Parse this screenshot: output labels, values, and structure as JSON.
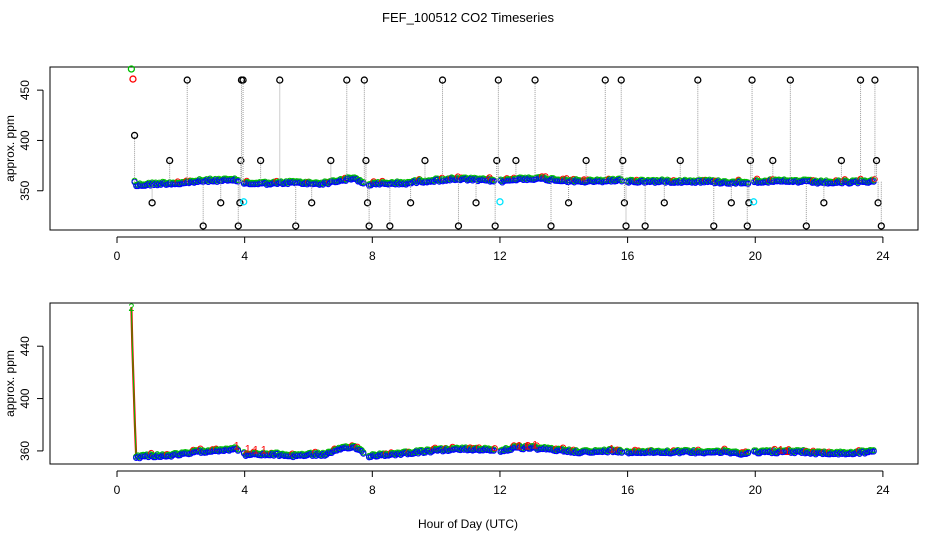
{
  "title": "FEF_100512  CO2 Timeseries",
  "xlabel": "Hour of Day (UTC)",
  "colors": {
    "black": "#000000",
    "red": "#ff0000",
    "green": "#00c000",
    "blue": "#0000ff",
    "cyan": "#00e5ff",
    "gray": "#9a9a9a"
  },
  "chart_data": [
    {
      "type": "scatter",
      "panel": "top",
      "ylabel": "approx. ppm",
      "xlim": [
        -2.1,
        25.1
      ],
      "ylim": [
        311,
        473
      ],
      "xticks": [
        0,
        4,
        8,
        12,
        16,
        20,
        24
      ],
      "yticks": [
        350,
        400,
        450
      ],
      "segments": [
        [
          0.55,
          3.82
        ],
        [
          3.98,
          7.72
        ],
        [
          7.9,
          11.85
        ],
        [
          12.02,
          15.83
        ],
        [
          15.98,
          19.8
        ],
        [
          19.97,
          23.75
        ]
      ],
      "baseline": [
        [
          0.6,
          355
        ],
        [
          1.0,
          356
        ],
        [
          1.5,
          357
        ],
        [
          2.0,
          357
        ],
        [
          2.5,
          359
        ],
        [
          3.0,
          360
        ],
        [
          3.5,
          360
        ],
        [
          3.8,
          360
        ],
        [
          4.0,
          357
        ],
        [
          4.5,
          357
        ],
        [
          5.0,
          357
        ],
        [
          5.5,
          358
        ],
        [
          6.0,
          357
        ],
        [
          6.5,
          357
        ],
        [
          7.0,
          360
        ],
        [
          7.4,
          362
        ],
        [
          7.7,
          358
        ],
        [
          7.9,
          356
        ],
        [
          8.5,
          357
        ],
        [
          9.0,
          357
        ],
        [
          9.5,
          359
        ],
        [
          10.0,
          360
        ],
        [
          10.5,
          361
        ],
        [
          11.0,
          361
        ],
        [
          11.5,
          360
        ],
        [
          11.85,
          360
        ],
        [
          12.02,
          359
        ],
        [
          12.5,
          361
        ],
        [
          13.0,
          362
        ],
        [
          13.5,
          361
        ],
        [
          14.0,
          360
        ],
        [
          14.5,
          359
        ],
        [
          15.0,
          359
        ],
        [
          15.5,
          360
        ],
        [
          15.83,
          360
        ],
        [
          15.98,
          359
        ],
        [
          16.5,
          359
        ],
        [
          17.0,
          359
        ],
        [
          17.5,
          359
        ],
        [
          18.0,
          359
        ],
        [
          18.5,
          359
        ],
        [
          19.0,
          358
        ],
        [
          19.5,
          358
        ],
        [
          19.8,
          358
        ],
        [
          19.97,
          359
        ],
        [
          20.5,
          359
        ],
        [
          21.0,
          359
        ],
        [
          21.5,
          359
        ],
        [
          22.0,
          358
        ],
        [
          22.5,
          358
        ],
        [
          23.0,
          358
        ],
        [
          23.5,
          359
        ],
        [
          23.75,
          359
        ]
      ],
      "black_points": [
        [
          0.55,
          405
        ],
        [
          1.1,
          338
        ],
        [
          1.65,
          380
        ],
        [
          2.2,
          460
        ],
        [
          2.7,
          315
        ],
        [
          3.25,
          338
        ],
        [
          3.8,
          315
        ],
        [
          3.85,
          338
        ],
        [
          3.88,
          380
        ],
        [
          3.9,
          460
        ],
        [
          3.95,
          460
        ],
        [
          4.5,
          380
        ],
        [
          5.1,
          460
        ],
        [
          5.6,
          315
        ],
        [
          6.1,
          338
        ],
        [
          6.7,
          380
        ],
        [
          7.2,
          460
        ],
        [
          7.75,
          460
        ],
        [
          7.8,
          380
        ],
        [
          7.85,
          338
        ],
        [
          7.9,
          315
        ],
        [
          8.55,
          315
        ],
        [
          9.2,
          338
        ],
        [
          9.65,
          380
        ],
        [
          10.2,
          460
        ],
        [
          10.7,
          315
        ],
        [
          11.25,
          338
        ],
        [
          11.85,
          315
        ],
        [
          11.9,
          380
        ],
        [
          11.95,
          460
        ],
        [
          12.5,
          380
        ],
        [
          13.1,
          460
        ],
        [
          13.6,
          315
        ],
        [
          14.15,
          338
        ],
        [
          14.7,
          380
        ],
        [
          15.3,
          460
        ],
        [
          15.8,
          460
        ],
        [
          15.85,
          380
        ],
        [
          15.9,
          338
        ],
        [
          15.95,
          315
        ],
        [
          16.55,
          315
        ],
        [
          17.15,
          338
        ],
        [
          17.65,
          380
        ],
        [
          18.2,
          460
        ],
        [
          18.7,
          315
        ],
        [
          19.25,
          338
        ],
        [
          19.75,
          315
        ],
        [
          19.8,
          338
        ],
        [
          19.85,
          380
        ],
        [
          19.9,
          460
        ],
        [
          20.55,
          380
        ],
        [
          21.1,
          460
        ],
        [
          21.6,
          315
        ],
        [
          22.15,
          338
        ],
        [
          22.7,
          380
        ],
        [
          23.3,
          460
        ],
        [
          23.75,
          460
        ],
        [
          23.8,
          380
        ],
        [
          23.85,
          338
        ],
        [
          23.95,
          315
        ]
      ],
      "extra_points": [
        {
          "color": "green",
          "x": 0.45,
          "y": 471
        },
        {
          "color": "red",
          "x": 0.5,
          "y": 461
        },
        {
          "color": "cyan",
          "x": 3.97,
          "y": 339
        },
        {
          "color": "cyan",
          "x": 12.0,
          "y": 339
        },
        {
          "color": "cyan",
          "x": 19.95,
          "y": 339
        }
      ]
    },
    {
      "type": "scatter",
      "panel": "bottom",
      "ylabel": "approx. ppm",
      "xlim": [
        -2.1,
        25.1
      ],
      "ylim": [
        350,
        473
      ],
      "xticks": [
        0,
        4,
        8,
        12,
        16,
        20,
        24
      ],
      "yticks": [
        360,
        400,
        440
      ],
      "segments": [
        [
          0.6,
          3.82
        ],
        [
          3.98,
          7.72
        ],
        [
          7.9,
          11.85
        ],
        [
          12.02,
          15.83
        ],
        [
          15.98,
          19.8
        ],
        [
          19.97,
          23.75
        ]
      ],
      "spike": [
        [
          0.45,
          470
        ],
        [
          0.48,
          440
        ],
        [
          0.52,
          410
        ],
        [
          0.56,
          380
        ],
        [
          0.6,
          356
        ]
      ],
      "baseline": [
        [
          0.6,
          355
        ],
        [
          1.0,
          356
        ],
        [
          1.5,
          356
        ],
        [
          2.0,
          357
        ],
        [
          2.5,
          359
        ],
        [
          3.0,
          360
        ],
        [
          3.5,
          361
        ],
        [
          3.8,
          361
        ],
        [
          4.0,
          357
        ],
        [
          4.5,
          357
        ],
        [
          5.0,
          357
        ],
        [
          5.5,
          356
        ],
        [
          6.0,
          357
        ],
        [
          6.5,
          357
        ],
        [
          7.0,
          361
        ],
        [
          7.4,
          363
        ],
        [
          7.7,
          359
        ],
        [
          7.9,
          356
        ],
        [
          8.5,
          357
        ],
        [
          9.0,
          358
        ],
        [
          9.5,
          359
        ],
        [
          10.0,
          360
        ],
        [
          10.5,
          361
        ],
        [
          11.0,
          361
        ],
        [
          11.5,
          361
        ],
        [
          11.85,
          360
        ],
        [
          12.02,
          360
        ],
        [
          12.5,
          362
        ],
        [
          13.0,
          362
        ],
        [
          13.5,
          361
        ],
        [
          14.0,
          360
        ],
        [
          14.5,
          359
        ],
        [
          15.0,
          359
        ],
        [
          15.5,
          360
        ],
        [
          15.83,
          359
        ],
        [
          15.98,
          359
        ],
        [
          16.5,
          359
        ],
        [
          17.0,
          359
        ],
        [
          17.5,
          359
        ],
        [
          18.0,
          359
        ],
        [
          18.5,
          359
        ],
        [
          19.0,
          359
        ],
        [
          19.5,
          358
        ],
        [
          19.8,
          358
        ],
        [
          19.97,
          359
        ],
        [
          20.5,
          359
        ],
        [
          21.0,
          359
        ],
        [
          21.5,
          359
        ],
        [
          22.0,
          358
        ],
        [
          22.5,
          358
        ],
        [
          23.0,
          358
        ],
        [
          23.5,
          359
        ],
        [
          23.75,
          359
        ]
      ],
      "labels": [
        {
          "text": "2",
          "color": "green",
          "x": 0.45,
          "y": 470
        },
        {
          "text": "1",
          "color": "red",
          "x": 3.75,
          "y": 364
        },
        {
          "text": "1",
          "color": "red",
          "x": 4.1,
          "y": 362
        },
        {
          "text": "1",
          "color": "red",
          "x": 4.35,
          "y": 361
        },
        {
          "text": "1",
          "color": "red",
          "x": 4.6,
          "y": 361
        },
        {
          "text": "1",
          "color": "red",
          "x": 12.6,
          "y": 364
        },
        {
          "text": "1",
          "color": "red",
          "x": 12.85,
          "y": 364
        },
        {
          "text": "1",
          "color": "red",
          "x": 13.1,
          "y": 365
        },
        {
          "text": "1",
          "color": "red",
          "x": 15.5,
          "y": 362
        },
        {
          "text": "1",
          "color": "red",
          "x": 20.8,
          "y": 361
        },
        {
          "text": "1",
          "color": "red",
          "x": 21.0,
          "y": 360
        }
      ]
    }
  ]
}
